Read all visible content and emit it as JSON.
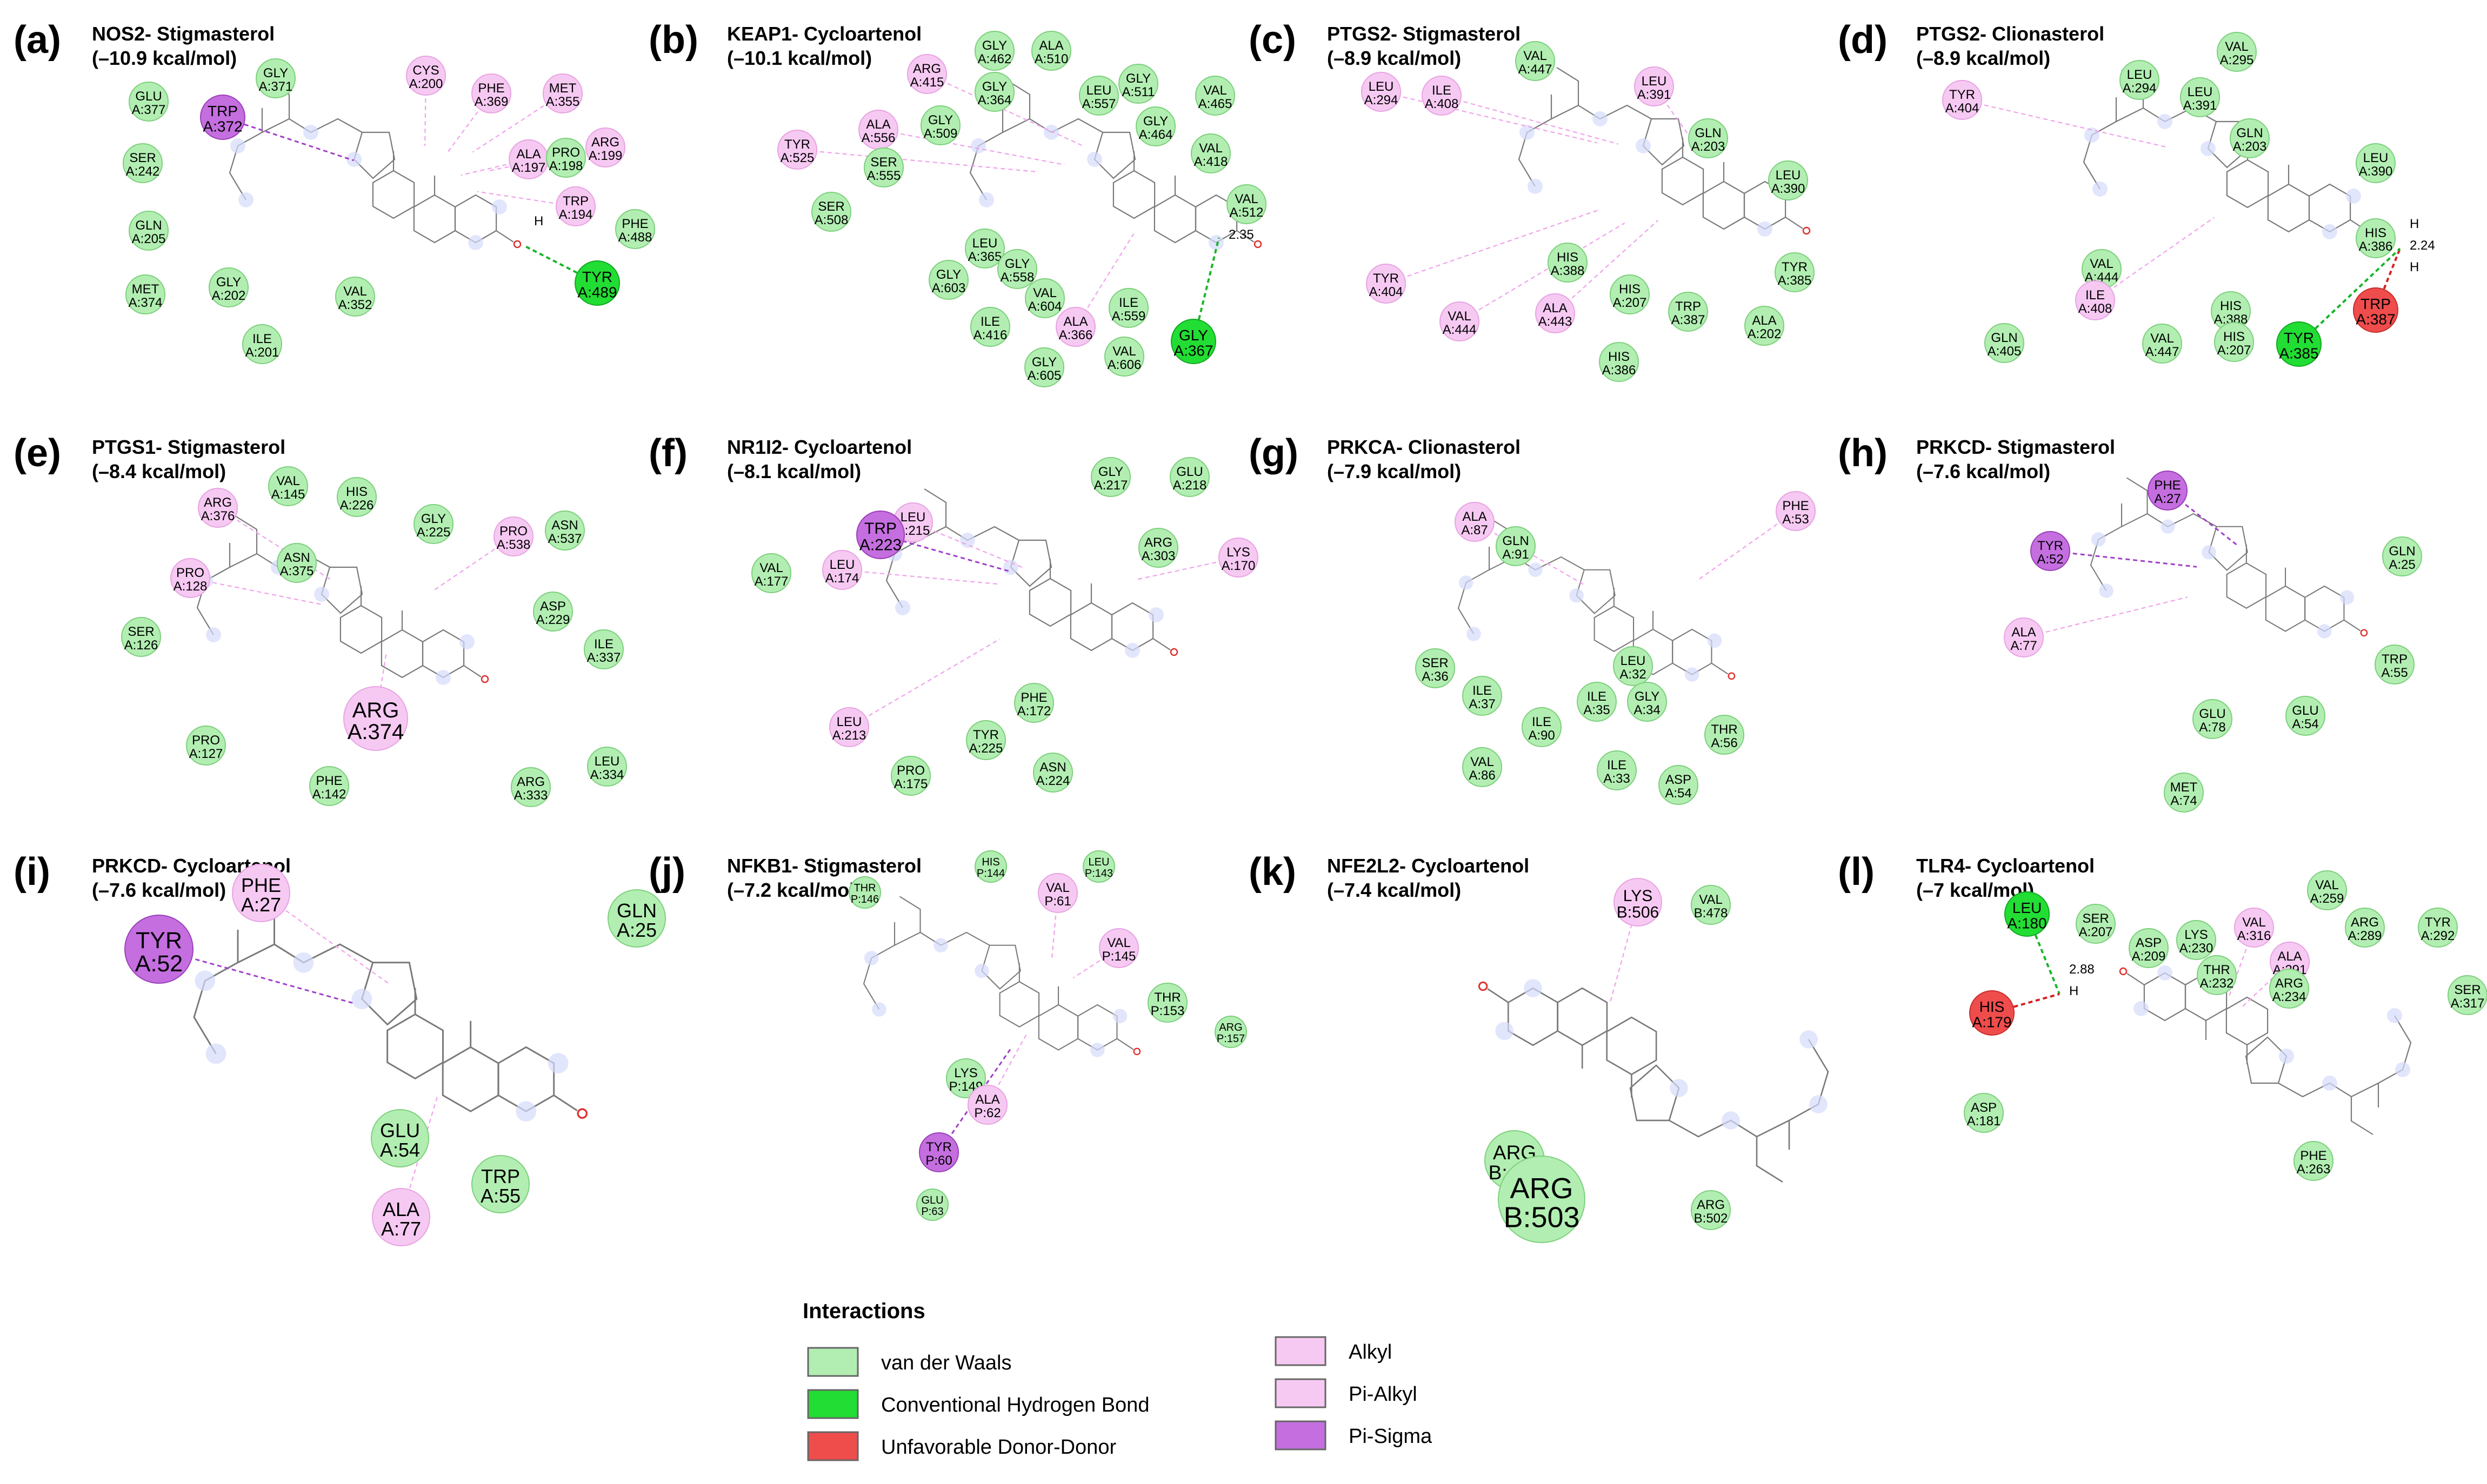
{
  "colors": {
    "vdw": "#b2eeb2",
    "vdw_stroke": "#7ed07e",
    "hbond": "#22dd33",
    "hbond_stroke": "#11aa22",
    "unfav": "#ef4c4c",
    "unfav_stroke": "#c92e2e",
    "alkyl": "#f6c9f2",
    "alkyl_stroke": "#e8a4e2",
    "pisigma": "#c46ee0",
    "pisigma_stroke": "#9b41b8",
    "hbond_line": "#18b52a",
    "unfav_line": "#d42020",
    "alkyl_line": "#f0a2ec",
    "pisigma_line": "#a03ec9"
  },
  "legend": {
    "title": "Interactions",
    "items": [
      {
        "type": "vdw",
        "label": "van der Waals"
      },
      {
        "type": "hbond",
        "label": "Conventional Hydrogen Bond"
      },
      {
        "type": "unfav",
        "label": "Unfavorable Donor-Donor"
      },
      {
        "type": "alkyl",
        "label": "Alkyl"
      },
      {
        "type": "alkyl",
        "label": "Pi-Alkyl"
      },
      {
        "type": "pisigma",
        "label": "Pi-Sigma"
      }
    ]
  },
  "panels": [
    {
      "letter": "(a)",
      "title": "NOS2- Stigmasterol",
      "energy": "(–10.9 kcal/mol)",
      "hlens": [
        "H"
      ],
      "residues": [
        {
          "name": "GLY",
          "num": "A:371",
          "type": "vdw"
        },
        {
          "name": "GLU",
          "num": "A:377",
          "type": "vdw"
        },
        {
          "name": "TRP",
          "num": "A:372",
          "type": "pisigma"
        },
        {
          "name": "CYS",
          "num": "A:200",
          "type": "alkyl"
        },
        {
          "name": "PHE",
          "num": "A:369",
          "type": "alkyl"
        },
        {
          "name": "MET",
          "num": "A:355",
          "type": "alkyl"
        },
        {
          "name": "SER",
          "num": "A:242",
          "type": "vdw"
        },
        {
          "name": "ALA",
          "num": "A:197",
          "type": "alkyl"
        },
        {
          "name": "PRO",
          "num": "A:198",
          "type": "vdw"
        },
        {
          "name": "ARG",
          "num": "A:199",
          "type": "alkyl"
        },
        {
          "name": "TRP",
          "num": "A:194",
          "type": "alkyl"
        },
        {
          "name": "GLN",
          "num": "A:205",
          "type": "vdw"
        },
        {
          "name": "PHE",
          "num": "A:488",
          "type": "vdw"
        },
        {
          "name": "TYR",
          "num": "A:489",
          "type": "hbond"
        },
        {
          "name": "MET",
          "num": "A:374",
          "type": "vdw"
        },
        {
          "name": "GLY",
          "num": "A:202",
          "type": "vdw"
        },
        {
          "name": "VAL",
          "num": "A:352",
          "type": "vdw"
        },
        {
          "name": "ILE",
          "num": "A:201",
          "type": "vdw"
        }
      ]
    },
    {
      "letter": "(b)",
      "title": "KEAP1- Cycloartenol",
      "energy": "(–10.1 kcal/mol)",
      "hlens": [
        "H",
        "2.35"
      ],
      "residues": [
        {
          "name": "GLY",
          "num": "A:462",
          "type": "vdw"
        },
        {
          "name": "ALA",
          "num": "A:510",
          "type": "vdw"
        },
        {
          "name": "ARG",
          "num": "A:415",
          "type": "alkyl"
        },
        {
          "name": "GLY",
          "num": "A:364",
          "type": "vdw"
        },
        {
          "name": "LEU",
          "num": "A:557",
          "type": "vdw"
        },
        {
          "name": "GLY",
          "num": "A:511",
          "type": "vdw"
        },
        {
          "name": "VAL",
          "num": "A:465",
          "type": "vdw"
        },
        {
          "name": "TYR",
          "num": "A:525",
          "type": "alkyl"
        },
        {
          "name": "ALA",
          "num": "A:556",
          "type": "alkyl"
        },
        {
          "name": "GLY",
          "num": "A:509",
          "type": "vdw"
        },
        {
          "name": "GLY",
          "num": "A:464",
          "type": "vdw"
        },
        {
          "name": "SER",
          "num": "A:555",
          "type": "vdw"
        },
        {
          "name": "VAL",
          "num": "A:418",
          "type": "vdw"
        },
        {
          "name": "SER",
          "num": "A:508",
          "type": "vdw"
        },
        {
          "name": "VAL",
          "num": "A:512",
          "type": "vdw"
        },
        {
          "name": "LEU",
          "num": "A:365",
          "type": "vdw"
        },
        {
          "name": "GLY",
          "num": "A:558",
          "type": "vdw"
        },
        {
          "name": "GLY",
          "num": "A:603",
          "type": "vdw"
        },
        {
          "name": "VAL",
          "num": "A:604",
          "type": "vdw"
        },
        {
          "name": "ILE",
          "num": "A:559",
          "type": "vdw"
        },
        {
          "name": "ILE",
          "num": "A:416",
          "type": "vdw"
        },
        {
          "name": "ALA",
          "num": "A:366",
          "type": "alkyl"
        },
        {
          "name": "GLY",
          "num": "A:367",
          "type": "hbond"
        },
        {
          "name": "VAL",
          "num": "A:606",
          "type": "vdw"
        },
        {
          "name": "GLY",
          "num": "A:605",
          "type": "vdw"
        }
      ]
    },
    {
      "letter": "(c)",
      "title": "PTGS2- Stigmasterol",
      "energy": "(–8.9 kcal/mol)",
      "hlens": [],
      "residues": [
        {
          "name": "VAL",
          "num": "A:447",
          "type": "vdw"
        },
        {
          "name": "LEU",
          "num": "A:294",
          "type": "alkyl"
        },
        {
          "name": "ILE",
          "num": "A:408",
          "type": "alkyl"
        },
        {
          "name": "LEU",
          "num": "A:391",
          "type": "alkyl"
        },
        {
          "name": "GLN",
          "num": "A:203",
          "type": "vdw"
        },
        {
          "name": "LEU",
          "num": "A:390",
          "type": "vdw"
        },
        {
          "name": "HIS",
          "num": "A:388",
          "type": "vdw"
        },
        {
          "name": "TYR",
          "num": "A:404",
          "type": "alkyl"
        },
        {
          "name": "TYR",
          "num": "A:385",
          "type": "vdw"
        },
        {
          "name": "HIS",
          "num": "A:207",
          "type": "vdw"
        },
        {
          "name": "VAL",
          "num": "A:444",
          "type": "alkyl"
        },
        {
          "name": "ALA",
          "num": "A:443",
          "type": "alkyl"
        },
        {
          "name": "TRP",
          "num": "A:387",
          "type": "vdw"
        },
        {
          "name": "ALA",
          "num": "A:202",
          "type": "vdw"
        },
        {
          "name": "HIS",
          "num": "A:386",
          "type": "vdw"
        }
      ]
    },
    {
      "letter": "(d)",
      "title": "PTGS2- Clionasterol",
      "energy": "(–8.9 kcal/mol)",
      "hlens": [
        "H",
        "2.24",
        "H"
      ],
      "residues": [
        {
          "name": "VAL",
          "num": "A:295",
          "type": "vdw"
        },
        {
          "name": "TYR",
          "num": "A:404",
          "type": "alkyl"
        },
        {
          "name": "LEU",
          "num": "A:294",
          "type": "vdw"
        },
        {
          "name": "LEU",
          "num": "A:391",
          "type": "vdw"
        },
        {
          "name": "GLN",
          "num": "A:203",
          "type": "vdw"
        },
        {
          "name": "LEU",
          "num": "A:390",
          "type": "vdw"
        },
        {
          "name": "HIS",
          "num": "A:386",
          "type": "vdw"
        },
        {
          "name": "VAL",
          "num": "A:444",
          "type": "vdw"
        },
        {
          "name": "ILE",
          "num": "A:408",
          "type": "alkyl"
        },
        {
          "name": "TRP",
          "num": "A:387",
          "type": "unfav"
        },
        {
          "name": "HIS",
          "num": "A:388",
          "type": "vdw"
        },
        {
          "name": "GLN",
          "num": "A:405",
          "type": "vdw"
        },
        {
          "name": "VAL",
          "num": "A:447",
          "type": "vdw"
        },
        {
          "name": "HIS",
          "num": "A:207",
          "type": "vdw"
        },
        {
          "name": "TYR",
          "num": "A:385",
          "type": "hbond"
        }
      ]
    },
    {
      "letter": "(e)",
      "title": "PTGS1- Stigmasterol",
      "energy": "(–8.4 kcal/mol)",
      "hlens": [],
      "residues": [
        {
          "name": "VAL",
          "num": "A:145",
          "type": "vdw"
        },
        {
          "name": "HIS",
          "num": "A:226",
          "type": "vdw"
        },
        {
          "name": "ARG",
          "num": "A:376",
          "type": "alkyl"
        },
        {
          "name": "GLY",
          "num": "A:225",
          "type": "vdw"
        },
        {
          "name": "PRO",
          "num": "A:538",
          "type": "alkyl"
        },
        {
          "name": "ASN",
          "num": "A:537",
          "type": "vdw"
        },
        {
          "name": "ASN",
          "num": "A:375",
          "type": "vdw"
        },
        {
          "name": "PRO",
          "num": "A:128",
          "type": "alkyl"
        },
        {
          "name": "ASP",
          "num": "A:229",
          "type": "vdw"
        },
        {
          "name": "SER",
          "num": "A:126",
          "type": "vdw"
        },
        {
          "name": "ILE",
          "num": "A:337",
          "type": "vdw"
        },
        {
          "name": "ARG",
          "num": "A:374",
          "type": "alkyl"
        },
        {
          "name": "PRO",
          "num": "A:127",
          "type": "vdw"
        },
        {
          "name": "LEU",
          "num": "A:334",
          "type": "vdw"
        },
        {
          "name": "PHE",
          "num": "A:142",
          "type": "vdw"
        },
        {
          "name": "ARG",
          "num": "A:333",
          "type": "vdw"
        }
      ]
    },
    {
      "letter": "(f)",
      "title": "NR1I2- Cycloartenol",
      "energy": "(–8.1 kcal/mol)",
      "hlens": [],
      "residues": [
        {
          "name": "GLY",
          "num": "A:217",
          "type": "vdw"
        },
        {
          "name": "GLU",
          "num": "A:218",
          "type": "vdw"
        },
        {
          "name": "LEU",
          "num": "A:215",
          "type": "alkyl"
        },
        {
          "name": "TRP",
          "num": "A:223",
          "type": "pisigma"
        },
        {
          "name": "ARG",
          "num": "A:303",
          "type": "vdw"
        },
        {
          "name": "LYS",
          "num": "A:170",
          "type": "alkyl"
        },
        {
          "name": "VAL",
          "num": "A:177",
          "type": "vdw"
        },
        {
          "name": "LEU",
          "num": "A:174",
          "type": "alkyl"
        },
        {
          "name": "PHE",
          "num": "A:172",
          "type": "vdw"
        },
        {
          "name": "LEU",
          "num": "A:213",
          "type": "alkyl"
        },
        {
          "name": "TYR",
          "num": "A:225",
          "type": "vdw"
        },
        {
          "name": "ASN",
          "num": "A:224",
          "type": "vdw"
        },
        {
          "name": "PRO",
          "num": "A:175",
          "type": "vdw"
        }
      ]
    },
    {
      "letter": "(g)",
      "title": "PRKCA- Clionasterol",
      "energy": "(–7.9 kcal/mol)",
      "hlens": [],
      "residues": [
        {
          "name": "ALA",
          "num": "A:87",
          "type": "alkyl"
        },
        {
          "name": "PHE",
          "num": "A:53",
          "type": "alkyl"
        },
        {
          "name": "GLN",
          "num": "A:91",
          "type": "vdw"
        },
        {
          "name": "SER",
          "num": "A:36",
          "type": "vdw"
        },
        {
          "name": "LEU",
          "num": "A:32",
          "type": "vdw"
        },
        {
          "name": "ILE",
          "num": "A:37",
          "type": "vdw"
        },
        {
          "name": "ILE",
          "num": "A:35",
          "type": "vdw"
        },
        {
          "name": "GLY",
          "num": "A:34",
          "type": "vdw"
        },
        {
          "name": "ILE",
          "num": "A:90",
          "type": "vdw"
        },
        {
          "name": "THR",
          "num": "A:56",
          "type": "vdw"
        },
        {
          "name": "VAL",
          "num": "A:86",
          "type": "vdw"
        },
        {
          "name": "ILE",
          "num": "A:33",
          "type": "vdw"
        },
        {
          "name": "ASP",
          "num": "A:54",
          "type": "vdw"
        }
      ]
    },
    {
      "letter": "(h)",
      "title": "PRKCD- Stigmasterol",
      "energy": "(–7.6 kcal/mol)",
      "hlens": [],
      "residues": [
        {
          "name": "PHE",
          "num": "A:27",
          "type": "pisigma"
        },
        {
          "name": "TYR",
          "num": "A:52",
          "type": "pisigma"
        },
        {
          "name": "GLN",
          "num": "A:25",
          "type": "vdw"
        },
        {
          "name": "ALA",
          "num": "A:77",
          "type": "alkyl"
        },
        {
          "name": "TRP",
          "num": "A:55",
          "type": "vdw"
        },
        {
          "name": "GLU",
          "num": "A:78",
          "type": "vdw"
        },
        {
          "name": "GLU",
          "num": "A:54",
          "type": "vdw"
        },
        {
          "name": "MET",
          "num": "A:74",
          "type": "vdw"
        }
      ]
    },
    {
      "letter": "(i)",
      "title": "PRKCD- Cycloartenol",
      "energy": "(–7.6 kcal/mol)",
      "hlens": [],
      "residues": [
        {
          "name": "PHE",
          "num": "A:27",
          "type": "alkyl"
        },
        {
          "name": "TYR",
          "num": "A:52",
          "type": "pisigma"
        },
        {
          "name": "GLN",
          "num": "A:25",
          "type": "vdw"
        },
        {
          "name": "GLU",
          "num": "A:54",
          "type": "vdw"
        },
        {
          "name": "TRP",
          "num": "A:55",
          "type": "vdw"
        },
        {
          "name": "ALA",
          "num": "A:77",
          "type": "alkyl"
        }
      ]
    },
    {
      "letter": "(j)",
      "title": "NFKB1- Stigmasterol",
      "energy": "(–7.2 kcal/mol)",
      "hlens": [],
      "residues": [
        {
          "name": "HIS",
          "num": "P:144",
          "type": "vdw"
        },
        {
          "name": "LEU",
          "num": "P:143",
          "type": "vdw"
        },
        {
          "name": "THR",
          "num": "P:146",
          "type": "vdw"
        },
        {
          "name": "VAL",
          "num": "P:61",
          "type": "alkyl"
        },
        {
          "name": "VAL",
          "num": "P:145",
          "type": "alkyl"
        },
        {
          "name": "THR",
          "num": "P:153",
          "type": "vdw"
        },
        {
          "name": "ARG",
          "num": "P:157",
          "type": "vdw"
        },
        {
          "name": "LYS",
          "num": "P:149",
          "type": "vdw"
        },
        {
          "name": "ALA",
          "num": "P:62",
          "type": "alkyl"
        },
        {
          "name": "TYR",
          "num": "P:60",
          "type": "pisigma"
        },
        {
          "name": "GLU",
          "num": "P:63",
          "type": "vdw"
        }
      ]
    },
    {
      "letter": "(k)",
      "title": "NFE2L2- Cycloartenol",
      "energy": "(–7.4 kcal/mol)",
      "hlens": [],
      "residues": [
        {
          "name": "LYS",
          "num": "B:506",
          "type": "alkyl"
        },
        {
          "name": "VAL",
          "num": "B:478",
          "type": "vdw"
        },
        {
          "name": "ARG",
          "num": "B:499",
          "type": "vdw"
        },
        {
          "name": "ARG",
          "num": "B:502",
          "type": "vdw"
        },
        {
          "name": "ARG",
          "num": "B:503",
          "type": "vdw"
        }
      ]
    },
    {
      "letter": "(l)",
      "title": "TLR4- Cycloartenol",
      "energy": "(–7 kcal/mol)",
      "hlens": [
        "2.88",
        "H"
      ],
      "residues": [
        {
          "name": "VAL",
          "num": "A:259",
          "type": "vdw"
        },
        {
          "name": "LEU",
          "num": "A:180",
          "type": "hbond"
        },
        {
          "name": "SER",
          "num": "A:207",
          "type": "vdw"
        },
        {
          "name": "ARG",
          "num": "A:289",
          "type": "vdw"
        },
        {
          "name": "TYR",
          "num": "A:292",
          "type": "vdw"
        },
        {
          "name": "ASP",
          "num": "A:209",
          "type": "vdw"
        },
        {
          "name": "LYS",
          "num": "A:230",
          "type": "vdw"
        },
        {
          "name": "VAL",
          "num": "A:316",
          "type": "alkyl"
        },
        {
          "name": "ALA",
          "num": "A:291",
          "type": "alkyl"
        },
        {
          "name": "THR",
          "num": "A:232",
          "type": "vdw"
        },
        {
          "name": "ARG",
          "num": "A:234",
          "type": "vdw"
        },
        {
          "name": "SER",
          "num": "A:317",
          "type": "vdw"
        },
        {
          "name": "HIS",
          "num": "A:179",
          "type": "unfav"
        },
        {
          "name": "ASP",
          "num": "A:181",
          "type": "vdw"
        },
        {
          "name": "PHE",
          "num": "A:263",
          "type": "vdw"
        }
      ]
    }
  ]
}
